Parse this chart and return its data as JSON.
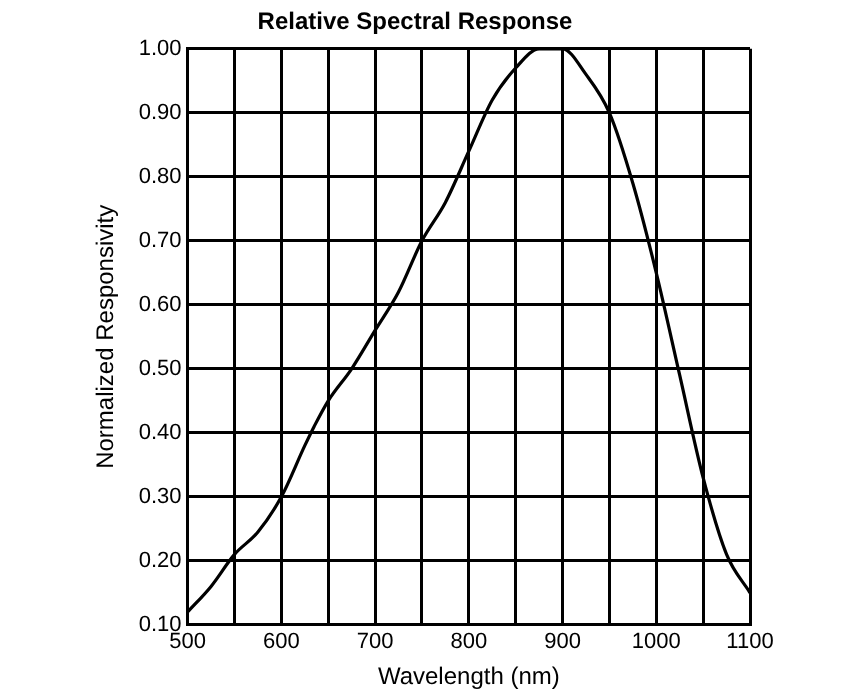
{
  "chart_data": {
    "type": "line",
    "title": "Relative Spectral Response",
    "xlabel": "Wavelength (nm)",
    "ylabel": "Normalized Responsivity",
    "x": [
      500,
      525,
      550,
      575,
      600,
      625,
      635,
      650,
      675,
      700,
      725,
      750,
      775,
      800,
      825,
      850,
      875,
      900,
      925,
      950,
      975,
      1000,
      1025,
      1050,
      1075,
      1100
    ],
    "series": [
      {
        "color": "#000000",
        "values": [
          0.12,
          0.16,
          0.21,
          0.245,
          0.3,
          0.38,
          0.41,
          0.45,
          0.5,
          0.56,
          0.62,
          0.7,
          0.76,
          0.84,
          0.92,
          0.97,
          1.0,
          1.0,
          0.96,
          0.9,
          0.79,
          0.65,
          0.49,
          0.33,
          0.21,
          0.15
        ]
      }
    ],
    "xlim": [
      500,
      1100
    ],
    "xticks": [
      500,
      {
        "value": 550,
        "label": null
      },
      600,
      {
        "value": 650,
        "label": null
      },
      700,
      {
        "value": 750,
        "label": null
      },
      800,
      {
        "value": 850,
        "label": null
      },
      900,
      {
        "value": 950,
        "label": null
      },
      1000,
      {
        "value": 1050,
        "label": null
      },
      1100
    ],
    "ylim": [
      0.1,
      1.0
    ],
    "yticks": [
      {
        "value": 0.1,
        "label": "0.10"
      },
      {
        "value": 0.2,
        "label": "0.20"
      },
      {
        "value": 0.3,
        "label": "0.30"
      },
      {
        "value": 0.4,
        "label": "0.40"
      },
      {
        "value": 0.5,
        "label": "0.50"
      },
      {
        "value": 0.6,
        "label": "0.60"
      },
      {
        "value": 0.7,
        "label": "0.70"
      },
      {
        "value": 0.8,
        "label": "0.80"
      },
      {
        "value": 0.9,
        "label": "0.90"
      },
      {
        "value": 1.0,
        "label": "1.00"
      }
    ],
    "grid": true,
    "legend": false,
    "marker": "none",
    "line_style": "solid"
  }
}
